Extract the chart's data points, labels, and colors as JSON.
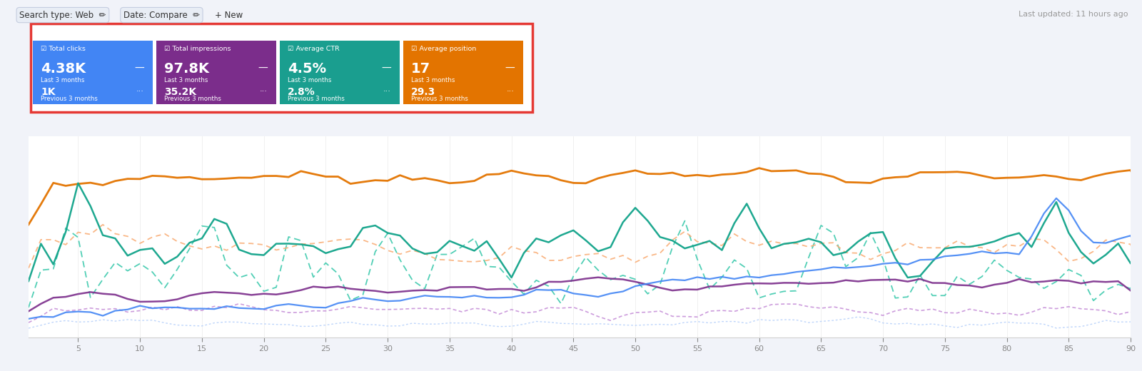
{
  "bg_color": "#f1f3f9",
  "panel_colors": [
    "#4285f4",
    "#7b2d8b",
    "#1a9e8f",
    "#e37400"
  ],
  "panel_labels": [
    "Total clicks",
    "Total impressions",
    "Average CTR",
    "Average position"
  ],
  "panel_values_main": [
    "4.38K",
    "97.8K",
    "4.5%",
    "17"
  ],
  "panel_values_prev": [
    "1K",
    "35.2K",
    "2.8%",
    "29.3"
  ],
  "panel_period_main": "Last 3 months",
  "panel_period_prev": "Previous 3 months",
  "x_ticks": [
    5,
    10,
    15,
    20,
    25,
    30,
    35,
    40,
    45,
    50,
    55,
    60,
    65,
    70,
    75,
    80,
    85,
    90
  ],
  "n_points": 91,
  "last_updated": "Last updated: 11 hours ago",
  "line_colors": {
    "clicks_current": "#4285f4",
    "clicks_prev": "#aecbfa",
    "impressions_current": "#12a38a",
    "impressions_prev": "#34c7a9",
    "ctr_current": "#e37400",
    "ctr_prev": "#f9ab72",
    "position_current": "#7b2d8b",
    "position_prev": "#c084d4"
  }
}
